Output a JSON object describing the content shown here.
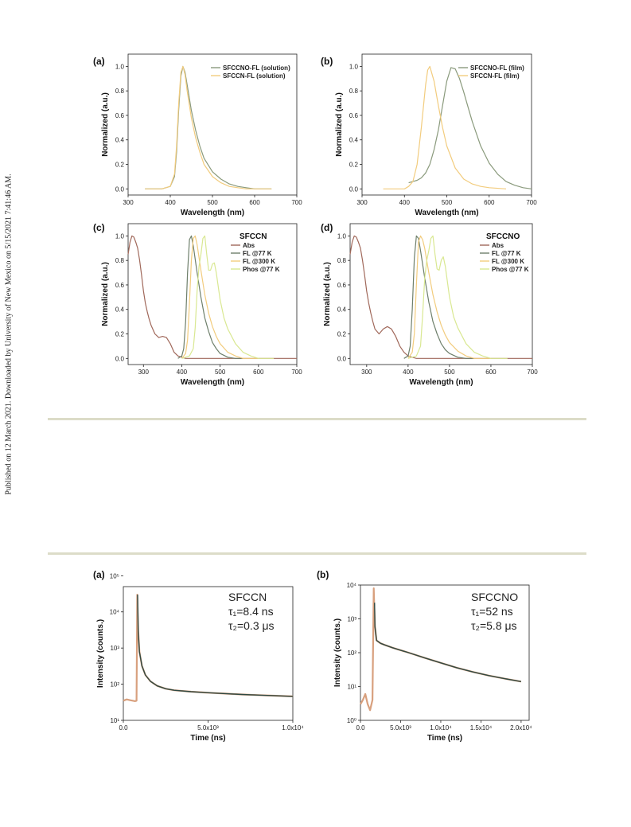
{
  "side_note": "Published on 12 March 2021. Downloaded by University of New Mexico on 5/15/2021 7:41:46 AM.",
  "chart_data": [
    {
      "type": "line",
      "panel": "(a)",
      "xlabel": "Wavelength (nm)",
      "ylabel": "Normalized (a.u.)",
      "xlim": [
        300,
        700
      ],
      "ylim": [
        -0.05,
        1.1
      ],
      "xticks": [
        300,
        400,
        500,
        600,
        700
      ],
      "yticks": [
        0.0,
        0.2,
        0.4,
        0.6,
        0.8,
        1.0
      ],
      "legend_position": "top-right",
      "series": [
        {
          "name": "SFCCNO-FL (solution)",
          "color": "#8a9a7c",
          "x": [
            340,
            380,
            400,
            410,
            415,
            420,
            425,
            430,
            435,
            440,
            450,
            460,
            470,
            480,
            500,
            520,
            540,
            560,
            580,
            600,
            640
          ],
          "y": [
            0,
            0,
            0.02,
            0.1,
            0.3,
            0.65,
            0.92,
            1.0,
            0.95,
            0.85,
            0.64,
            0.48,
            0.35,
            0.25,
            0.14,
            0.08,
            0.04,
            0.02,
            0.01,
            0,
            0
          ]
        },
        {
          "name": "SFCCN-FL (solution)",
          "color": "#f2cc7e",
          "x": [
            340,
            380,
            400,
            410,
            415,
            420,
            425,
            430,
            435,
            440,
            450,
            460,
            470,
            480,
            500,
            520,
            540,
            560,
            580,
            600,
            640
          ],
          "y": [
            0,
            0,
            0.02,
            0.12,
            0.35,
            0.7,
            0.95,
            1.0,
            0.93,
            0.8,
            0.58,
            0.42,
            0.3,
            0.2,
            0.1,
            0.05,
            0.02,
            0.01,
            0,
            0,
            0
          ]
        }
      ]
    },
    {
      "type": "line",
      "panel": "(b)",
      "xlabel": "Wavelength (nm)",
      "ylabel": "Normalized (a.u.)",
      "xlim": [
        300,
        700
      ],
      "ylim": [
        -0.05,
        1.1
      ],
      "xticks": [
        300,
        400,
        500,
        600,
        700
      ],
      "yticks": [
        0.0,
        0.2,
        0.4,
        0.6,
        0.8,
        1.0
      ],
      "legend_position": "top-right",
      "series": [
        {
          "name": "SFCCNO-FL (film)",
          "color": "#8a9a7c",
          "x": [
            410,
            420,
            430,
            440,
            450,
            460,
            470,
            480,
            490,
            500,
            510,
            520,
            530,
            540,
            550,
            560,
            580,
            600,
            620,
            640,
            660,
            680,
            700
          ],
          "y": [
            0.05,
            0.06,
            0.07,
            0.09,
            0.13,
            0.2,
            0.32,
            0.48,
            0.68,
            0.88,
            0.99,
            0.98,
            0.9,
            0.79,
            0.67,
            0.55,
            0.35,
            0.21,
            0.12,
            0.06,
            0.03,
            0.01,
            0
          ]
        },
        {
          "name": "SFCCN-FL (film)",
          "color": "#f2cc7e",
          "x": [
            350,
            400,
            410,
            420,
            430,
            440,
            450,
            455,
            460,
            470,
            480,
            490,
            500,
            520,
            540,
            560,
            580,
            600,
            640
          ],
          "y": [
            0,
            0,
            0.02,
            0.06,
            0.2,
            0.5,
            0.85,
            0.97,
            1.0,
            0.88,
            0.68,
            0.5,
            0.35,
            0.17,
            0.08,
            0.04,
            0.02,
            0.01,
            0
          ]
        }
      ]
    },
    {
      "type": "line",
      "panel": "(c)",
      "sample": "SFCCN",
      "xlabel": "Wavelength (nm)",
      "ylabel": "Normalized (a.u.)",
      "xlim": [
        260,
        700
      ],
      "ylim": [
        -0.05,
        1.1
      ],
      "xticks": [
        300,
        400,
        500,
        600,
        700
      ],
      "yticks": [
        0.0,
        0.2,
        0.4,
        0.6,
        0.8,
        1.0
      ],
      "legend_position": "top-right",
      "series": [
        {
          "name": "Abs",
          "color": "#a0685a",
          "x": [
            260,
            265,
            270,
            275,
            280,
            285,
            290,
            295,
            300,
            305,
            310,
            315,
            320,
            330,
            340,
            350,
            360,
            370,
            380,
            390,
            400,
            410,
            420,
            430,
            450,
            500,
            600,
            700
          ],
          "y": [
            0.85,
            0.95,
            1.0,
            0.99,
            0.95,
            0.9,
            0.8,
            0.68,
            0.55,
            0.45,
            0.38,
            0.32,
            0.27,
            0.2,
            0.17,
            0.18,
            0.17,
            0.12,
            0.05,
            0.02,
            0.01,
            0,
            0,
            0,
            0,
            0,
            0,
            0
          ]
        },
        {
          "name": "FL @77 K",
          "color": "#6e7f6b",
          "x": [
            390,
            400,
            405,
            410,
            415,
            420,
            425,
            430,
            440,
            450,
            460,
            470,
            480,
            490,
            500,
            520,
            540,
            560
          ],
          "y": [
            0,
            0.02,
            0.08,
            0.3,
            0.7,
            0.97,
            1.0,
            0.92,
            0.7,
            0.5,
            0.33,
            0.22,
            0.13,
            0.08,
            0.04,
            0.01,
            0,
            0
          ]
        },
        {
          "name": "FL @300 K",
          "color": "#f2cc7e",
          "x": [
            400,
            410,
            415,
            420,
            425,
            430,
            435,
            440,
            450,
            460,
            470,
            480,
            490,
            500,
            520,
            540,
            560,
            580,
            600
          ],
          "y": [
            0,
            0.04,
            0.15,
            0.45,
            0.8,
            0.98,
            1.0,
            0.93,
            0.72,
            0.52,
            0.37,
            0.26,
            0.18,
            0.12,
            0.05,
            0.02,
            0,
            0,
            0
          ]
        },
        {
          "name": "Phos @77 K",
          "color": "#d9e892",
          "x": [
            400,
            420,
            430,
            435,
            440,
            445,
            450,
            455,
            460,
            465,
            470,
            475,
            480,
            485,
            490,
            500,
            510,
            520,
            540,
            560,
            580,
            600,
            640
          ],
          "y": [
            0,
            0.02,
            0.08,
            0.25,
            0.55,
            0.75,
            0.85,
            0.98,
            1.0,
            0.85,
            0.72,
            0.72,
            0.77,
            0.78,
            0.7,
            0.48,
            0.33,
            0.24,
            0.12,
            0.05,
            0.02,
            0,
            0
          ]
        }
      ]
    },
    {
      "type": "line",
      "panel": "(d)",
      "sample": "SFCCNO",
      "xlabel": "Wavelength (nm)",
      "ylabel": "Normalized (a.u.)",
      "xlim": [
        260,
        700
      ],
      "ylim": [
        -0.05,
        1.1
      ],
      "xticks": [
        300,
        400,
        500,
        600,
        700
      ],
      "yticks": [
        0.0,
        0.2,
        0.4,
        0.6,
        0.8,
        1.0
      ],
      "legend_position": "top-right",
      "series": [
        {
          "name": "Abs",
          "color": "#a0685a",
          "x": [
            260,
            265,
            270,
            275,
            280,
            285,
            290,
            295,
            300,
            305,
            310,
            315,
            320,
            330,
            340,
            350,
            360,
            370,
            380,
            390,
            400,
            410,
            420,
            430,
            450,
            500,
            600,
            700
          ],
          "y": [
            0.85,
            0.95,
            1.0,
            0.99,
            0.95,
            0.9,
            0.8,
            0.68,
            0.55,
            0.45,
            0.37,
            0.3,
            0.24,
            0.2,
            0.24,
            0.26,
            0.24,
            0.18,
            0.1,
            0.05,
            0.02,
            0.01,
            0,
            0,
            0,
            0,
            0,
            0
          ]
        },
        {
          "name": "FL @77 K",
          "color": "#6e7f6b",
          "x": [
            390,
            400,
            405,
            410,
            415,
            420,
            425,
            430,
            440,
            450,
            460,
            470,
            480,
            490,
            500,
            520,
            540,
            560
          ],
          "y": [
            0,
            0.02,
            0.1,
            0.4,
            0.82,
            1.0,
            0.98,
            0.88,
            0.66,
            0.46,
            0.3,
            0.2,
            0.12,
            0.07,
            0.04,
            0.01,
            0,
            0
          ]
        },
        {
          "name": "FL @300 K",
          "color": "#f2cc7e",
          "x": [
            400,
            410,
            415,
            420,
            425,
            430,
            435,
            440,
            450,
            460,
            470,
            480,
            490,
            500,
            520,
            540,
            560,
            580,
            600
          ],
          "y": [
            0,
            0.05,
            0.2,
            0.6,
            0.95,
            1.0,
            0.97,
            0.9,
            0.7,
            0.52,
            0.38,
            0.27,
            0.19,
            0.13,
            0.06,
            0.02,
            0,
            0,
            0
          ]
        },
        {
          "name": "Phos @77 K",
          "color": "#d9e892",
          "x": [
            400,
            420,
            430,
            435,
            440,
            445,
            450,
            455,
            460,
            465,
            470,
            475,
            480,
            485,
            490,
            500,
            510,
            520,
            540,
            560,
            580,
            600,
            640
          ],
          "y": [
            0,
            0.02,
            0.1,
            0.35,
            0.65,
            0.8,
            0.88,
            0.98,
            1.0,
            0.85,
            0.73,
            0.72,
            0.8,
            0.83,
            0.75,
            0.5,
            0.34,
            0.25,
            0.12,
            0.05,
            0.02,
            0,
            0
          ]
        }
      ]
    },
    {
      "type": "line",
      "panel": "(a)",
      "sample": "SFCCN",
      "annotations": [
        "SFCCN",
        "τ₁=8.4 ns",
        "τ₂=0.3 μs"
      ],
      "xlabel": "Time (ns)",
      "ylabel": "Intensity (counts.)",
      "xlim": [
        0,
        10000
      ],
      "ylim": [
        10,
        50000
      ],
      "yscale": "log",
      "xticks": [
        0,
        5000,
        10000
      ],
      "xtick_labels": [
        "0.0",
        "5.0x10³",
        "1.0x10⁴"
      ],
      "yticks": [
        10,
        100,
        1000,
        10000,
        100000
      ],
      "ytick_labels": [
        "10¹",
        "10²",
        "10³",
        "10⁴",
        "10⁵"
      ],
      "series": [
        {
          "color": "#d8a07e",
          "role": "data",
          "x": [
            0,
            200,
            400,
            700,
            780,
            820,
            880,
            950,
            1100,
            1300,
            1600,
            2000,
            2500,
            3000,
            4000,
            5000,
            6000,
            7000,
            8000,
            9000,
            10000
          ],
          "y": [
            35,
            38,
            36,
            34,
            35,
            30000,
            3000,
            800,
            320,
            180,
            120,
            90,
            75,
            68,
            62,
            58,
            55,
            52,
            50,
            48,
            46
          ]
        },
        {
          "color": "#2f4a44",
          "role": "fit",
          "x": [
            840,
            880,
            950,
            1100,
            1300,
            1600,
            2000,
            2500,
            3000,
            4000,
            5000,
            6000,
            7000,
            8000,
            9000,
            10000
          ],
          "y": [
            30000,
            3000,
            800,
            320,
            180,
            120,
            90,
            75,
            68,
            62,
            58,
            55,
            52,
            50,
            48,
            46
          ]
        }
      ]
    },
    {
      "type": "line",
      "panel": "(b)",
      "sample": "SFCCNO",
      "annotations": [
        "SFCCNO",
        "τ₁=52 ns",
        "τ₂=5.8 μs"
      ],
      "xlabel": "Time (ns)",
      "ylabel": "Intensity (counts.)",
      "xlim": [
        0,
        21000
      ],
      "ylim": [
        1,
        10000
      ],
      "yscale": "log",
      "xticks": [
        0,
        5000,
        10000,
        15000,
        20000
      ],
      "xtick_labels": [
        "0.0",
        "5.0x10³",
        "1.0x10⁴",
        "1.5x10⁴",
        "2.0x10⁴"
      ],
      "yticks": [
        1,
        10,
        100,
        1000,
        10000
      ],
      "ytick_labels": [
        "10⁰",
        "10¹",
        "10²",
        "10³",
        "10⁴"
      ],
      "series": [
        {
          "color": "#d8a07e",
          "role": "data",
          "x": [
            0,
            300,
            600,
            900,
            1200,
            1500,
            1650,
            1700,
            1800,
            2000,
            2500,
            3000,
            4000,
            5000,
            6000,
            8000,
            10000,
            12000,
            14000,
            16000,
            18000,
            20000
          ],
          "y": [
            3,
            4,
            6,
            3,
            2,
            4,
            8000,
            3000,
            600,
            230,
            190,
            170,
            140,
            118,
            100,
            70,
            50,
            36,
            27,
            21,
            17,
            14
          ]
        },
        {
          "color": "#2f4a44",
          "role": "fit",
          "x": [
            1750,
            1800,
            2000,
            2500,
            3000,
            4000,
            5000,
            6000,
            8000,
            10000,
            12000,
            14000,
            16000,
            18000,
            20000
          ],
          "y": [
            3000,
            600,
            230,
            190,
            170,
            140,
            118,
            100,
            70,
            50,
            36,
            27,
            21,
            17,
            14
          ]
        }
      ]
    }
  ]
}
